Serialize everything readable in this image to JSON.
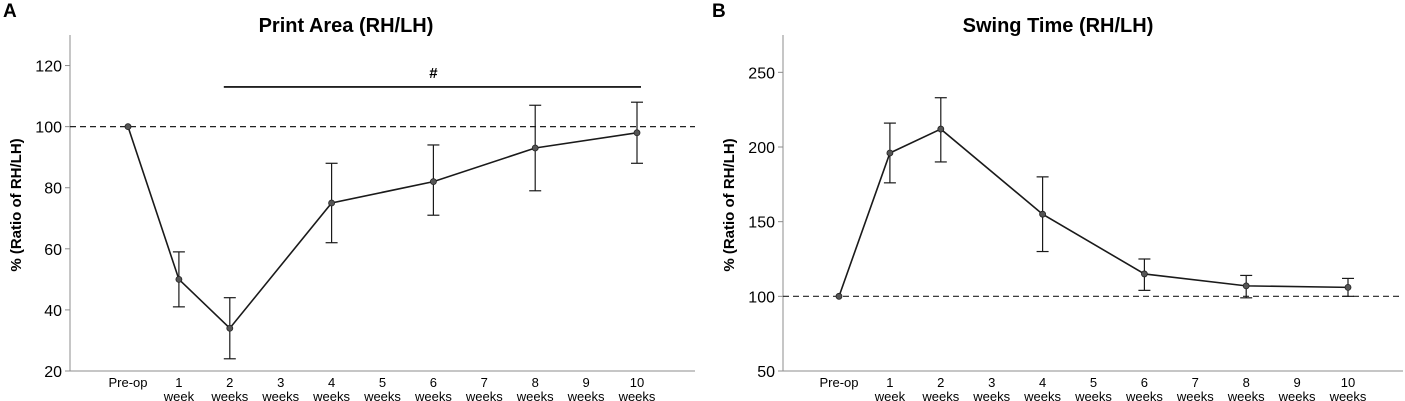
{
  "chart_data": [
    {
      "panel": "A",
      "type": "line",
      "title": "Print Area (RH/LH)",
      "ylabel": "% (Ratio of RH/LH)",
      "xlabel": "",
      "ylim": [
        20,
        130
      ],
      "yticks": [
        20,
        40,
        60,
        80,
        100,
        120
      ],
      "categories": [
        [
          "Pre-op"
        ],
        [
          "1",
          "week"
        ],
        [
          "2",
          "weeks"
        ],
        [
          "3",
          "weeks"
        ],
        [
          "4",
          "weeks"
        ],
        [
          "5",
          "weeks"
        ],
        [
          "6",
          "weeks"
        ],
        [
          "7",
          "weeks"
        ],
        [
          "8",
          "weeks"
        ],
        [
          "9",
          "weeks"
        ],
        [
          "10",
          "weeks"
        ]
      ],
      "series": [
        {
          "name": "RH/LH",
          "points": [
            {
              "x": "Pre-op",
              "y": 100,
              "lo": 100,
              "hi": 100
            },
            {
              "x": "1 week",
              "y": 50,
              "lo": 41,
              "hi": 59
            },
            {
              "x": "2 weeks",
              "y": 34,
              "lo": 24,
              "hi": 44
            },
            {
              "x": "4 weeks",
              "y": 75,
              "lo": 62,
              "hi": 88
            },
            {
              "x": "6 weeks",
              "y": 82,
              "lo": 71,
              "hi": 94
            },
            {
              "x": "8 weeks",
              "y": 93,
              "lo": 79,
              "hi": 107
            },
            {
              "x": "10 weeks",
              "y": 98,
              "lo": 88,
              "hi": 108
            }
          ]
        }
      ],
      "reference_line": 100,
      "annotations": [
        {
          "text": "#",
          "from": "2 weeks",
          "to": "10 weeks",
          "y": 113
        }
      ]
    },
    {
      "panel": "B",
      "type": "line",
      "title": "Swing Time (RH/LH)",
      "ylabel": "% (Ratio of RH/LH)",
      "xlabel": "",
      "ylim": [
        50,
        275
      ],
      "yticks": [
        50,
        100,
        150,
        200,
        250
      ],
      "categories": [
        [
          "Pre-op"
        ],
        [
          "1",
          "week"
        ],
        [
          "2",
          "weeks"
        ],
        [
          "3",
          "weeks"
        ],
        [
          "4",
          "weeks"
        ],
        [
          "5",
          "weeks"
        ],
        [
          "6",
          "weeks"
        ],
        [
          "7",
          "weeks"
        ],
        [
          "8",
          "weeks"
        ],
        [
          "9",
          "weeks"
        ],
        [
          "10",
          "weeks"
        ]
      ],
      "series": [
        {
          "name": "RH/LH",
          "points": [
            {
              "x": "Pre-op",
              "y": 100,
              "lo": 100,
              "hi": 100
            },
            {
              "x": "1 week",
              "y": 196,
              "lo": 176,
              "hi": 216
            },
            {
              "x": "2 weeks",
              "y": 212,
              "lo": 190,
              "hi": 233
            },
            {
              "x": "4 weeks",
              "y": 155,
              "lo": 130,
              "hi": 180
            },
            {
              "x": "6 weeks",
              "y": 115,
              "lo": 104,
              "hi": 125
            },
            {
              "x": "8 weeks",
              "y": 107,
              "lo": 99,
              "hi": 114
            },
            {
              "x": "10 weeks",
              "y": 106,
              "lo": 100,
              "hi": 112
            }
          ]
        }
      ],
      "reference_line": 100,
      "annotations": []
    }
  ]
}
